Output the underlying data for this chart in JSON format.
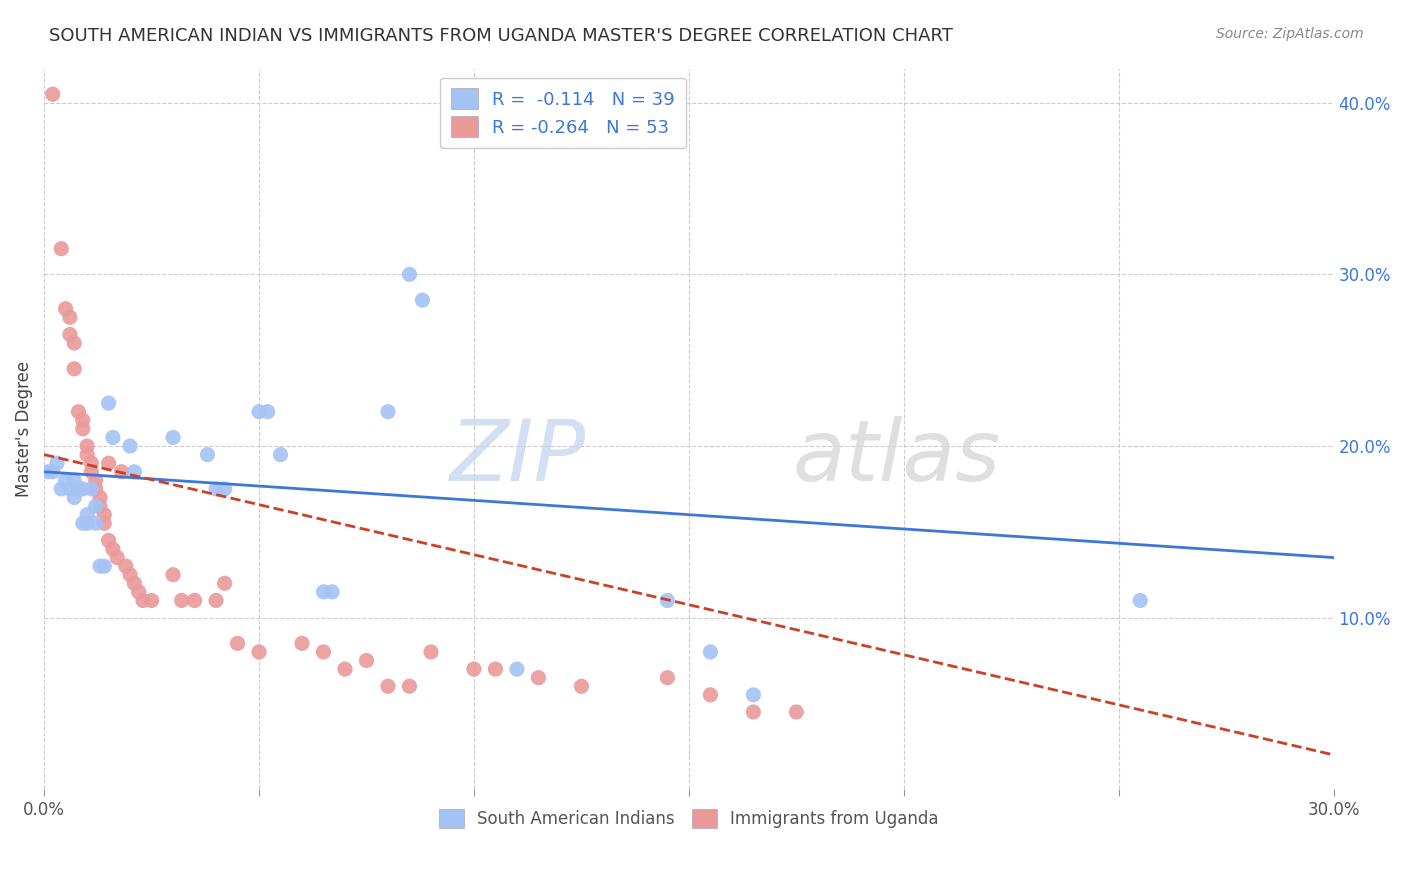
{
  "title": "SOUTH AMERICAN INDIAN VS IMMIGRANTS FROM UGANDA MASTER'S DEGREE CORRELATION CHART",
  "source": "Source: ZipAtlas.com",
  "ylabel": "Master's Degree",
  "xlim": [
    0.0,
    0.3
  ],
  "ylim": [
    0.0,
    0.42
  ],
  "legend_r1": "R =  -0.114   N = 39",
  "legend_r2": "R = -0.264   N = 53",
  "blue_color": "#a4c2f4",
  "pink_color": "#ea9999",
  "blue_line_color": "#3c78d8",
  "pink_line_color": "#cc4125",
  "blue_scatter": [
    [
      0.001,
      0.185
    ],
    [
      0.002,
      0.185
    ],
    [
      0.003,
      0.19
    ],
    [
      0.004,
      0.175
    ],
    [
      0.005,
      0.18
    ],
    [
      0.006,
      0.175
    ],
    [
      0.007,
      0.18
    ],
    [
      0.007,
      0.17
    ],
    [
      0.008,
      0.175
    ],
    [
      0.009,
      0.175
    ],
    [
      0.009,
      0.155
    ],
    [
      0.01,
      0.16
    ],
    [
      0.01,
      0.155
    ],
    [
      0.011,
      0.175
    ],
    [
      0.012,
      0.165
    ],
    [
      0.012,
      0.155
    ],
    [
      0.013,
      0.13
    ],
    [
      0.014,
      0.13
    ],
    [
      0.015,
      0.225
    ],
    [
      0.016,
      0.205
    ],
    [
      0.02,
      0.2
    ],
    [
      0.021,
      0.185
    ],
    [
      0.03,
      0.205
    ],
    [
      0.038,
      0.195
    ],
    [
      0.04,
      0.175
    ],
    [
      0.042,
      0.175
    ],
    [
      0.05,
      0.22
    ],
    [
      0.052,
      0.22
    ],
    [
      0.055,
      0.195
    ],
    [
      0.065,
      0.115
    ],
    [
      0.067,
      0.115
    ],
    [
      0.08,
      0.22
    ],
    [
      0.085,
      0.3
    ],
    [
      0.088,
      0.285
    ],
    [
      0.11,
      0.07
    ],
    [
      0.145,
      0.11
    ],
    [
      0.155,
      0.08
    ],
    [
      0.165,
      0.055
    ],
    [
      0.255,
      0.11
    ]
  ],
  "pink_scatter": [
    [
      0.002,
      0.405
    ],
    [
      0.004,
      0.315
    ],
    [
      0.005,
      0.28
    ],
    [
      0.006,
      0.265
    ],
    [
      0.006,
      0.275
    ],
    [
      0.007,
      0.26
    ],
    [
      0.007,
      0.245
    ],
    [
      0.008,
      0.22
    ],
    [
      0.009,
      0.215
    ],
    [
      0.009,
      0.21
    ],
    [
      0.01,
      0.2
    ],
    [
      0.01,
      0.195
    ],
    [
      0.011,
      0.19
    ],
    [
      0.011,
      0.185
    ],
    [
      0.012,
      0.18
    ],
    [
      0.012,
      0.175
    ],
    [
      0.013,
      0.17
    ],
    [
      0.013,
      0.165
    ],
    [
      0.014,
      0.16
    ],
    [
      0.014,
      0.155
    ],
    [
      0.015,
      0.19
    ],
    [
      0.015,
      0.145
    ],
    [
      0.016,
      0.14
    ],
    [
      0.017,
      0.135
    ],
    [
      0.018,
      0.185
    ],
    [
      0.019,
      0.13
    ],
    [
      0.02,
      0.125
    ],
    [
      0.021,
      0.12
    ],
    [
      0.022,
      0.115
    ],
    [
      0.023,
      0.11
    ],
    [
      0.025,
      0.11
    ],
    [
      0.03,
      0.125
    ],
    [
      0.032,
      0.11
    ],
    [
      0.035,
      0.11
    ],
    [
      0.04,
      0.11
    ],
    [
      0.042,
      0.12
    ],
    [
      0.045,
      0.085
    ],
    [
      0.05,
      0.08
    ],
    [
      0.06,
      0.085
    ],
    [
      0.065,
      0.08
    ],
    [
      0.07,
      0.07
    ],
    [
      0.075,
      0.075
    ],
    [
      0.08,
      0.06
    ],
    [
      0.085,
      0.06
    ],
    [
      0.09,
      0.08
    ],
    [
      0.1,
      0.07
    ],
    [
      0.105,
      0.07
    ],
    [
      0.115,
      0.065
    ],
    [
      0.125,
      0.06
    ],
    [
      0.145,
      0.065
    ],
    [
      0.155,
      0.055
    ],
    [
      0.165,
      0.045
    ],
    [
      0.175,
      0.045
    ]
  ],
  "blue_trend_x": [
    0.0,
    0.3
  ],
  "blue_trend_y": [
    0.185,
    0.135
  ],
  "pink_trend_x": [
    0.0,
    0.3
  ],
  "pink_trend_y": [
    0.195,
    0.02
  ],
  "watermark_zip": "ZIP",
  "watermark_atlas": "atlas",
  "grid_color": "#cccccc",
  "background_color": "#ffffff",
  "title_fontsize": 13,
  "source_fontsize": 10,
  "x_tick_positions": [
    0.0,
    0.05,
    0.1,
    0.15,
    0.2,
    0.25,
    0.3
  ],
  "y_tick_positions": [
    0.1,
    0.2,
    0.3,
    0.4
  ]
}
